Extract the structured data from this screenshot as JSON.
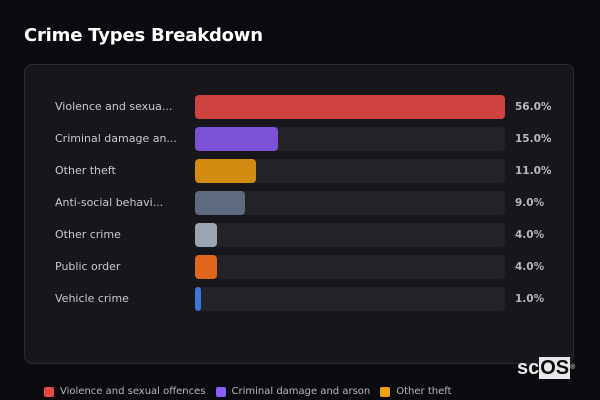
{
  "title": "Crime Types Breakdown",
  "chart_data": {
    "type": "bar",
    "orientation": "horizontal",
    "title": "Crime Types Breakdown",
    "categories": [
      "Violence and sexual offences",
      "Criminal damage and arson",
      "Other theft",
      "Anti-social behaviour",
      "Other crime",
      "Public order",
      "Vehicle crime"
    ],
    "display_labels": [
      "Violence and sexua...",
      "Criminal damage an...",
      "Other theft",
      "Anti-social behavi...",
      "Other crime",
      "Public order",
      "Vehicle crime"
    ],
    "values": [
      56.0,
      15.0,
      11.0,
      9.0,
      4.0,
      4.0,
      1.0
    ],
    "value_labels": [
      "56.0%",
      "15.0%",
      "11.0%",
      "9.0%",
      "4.0%",
      "4.0%",
      "1.0%"
    ],
    "colors": [
      "#d04141",
      "#7b52d6",
      "#d48b12",
      "#5e6a7d",
      "#9aa4b2",
      "#e0661c",
      "#3b76d9"
    ],
    "unit": "%",
    "legend": [
      {
        "label": "Violence and sexual offences",
        "color": "#e5474b"
      },
      {
        "label": "Criminal damage and arson",
        "color": "#8b5cf6"
      },
      {
        "label": "Other theft",
        "color": "#f5a10e"
      }
    ]
  },
  "logo": {
    "pre": "sc",
    "highlight": "OS",
    "mark": "®"
  }
}
